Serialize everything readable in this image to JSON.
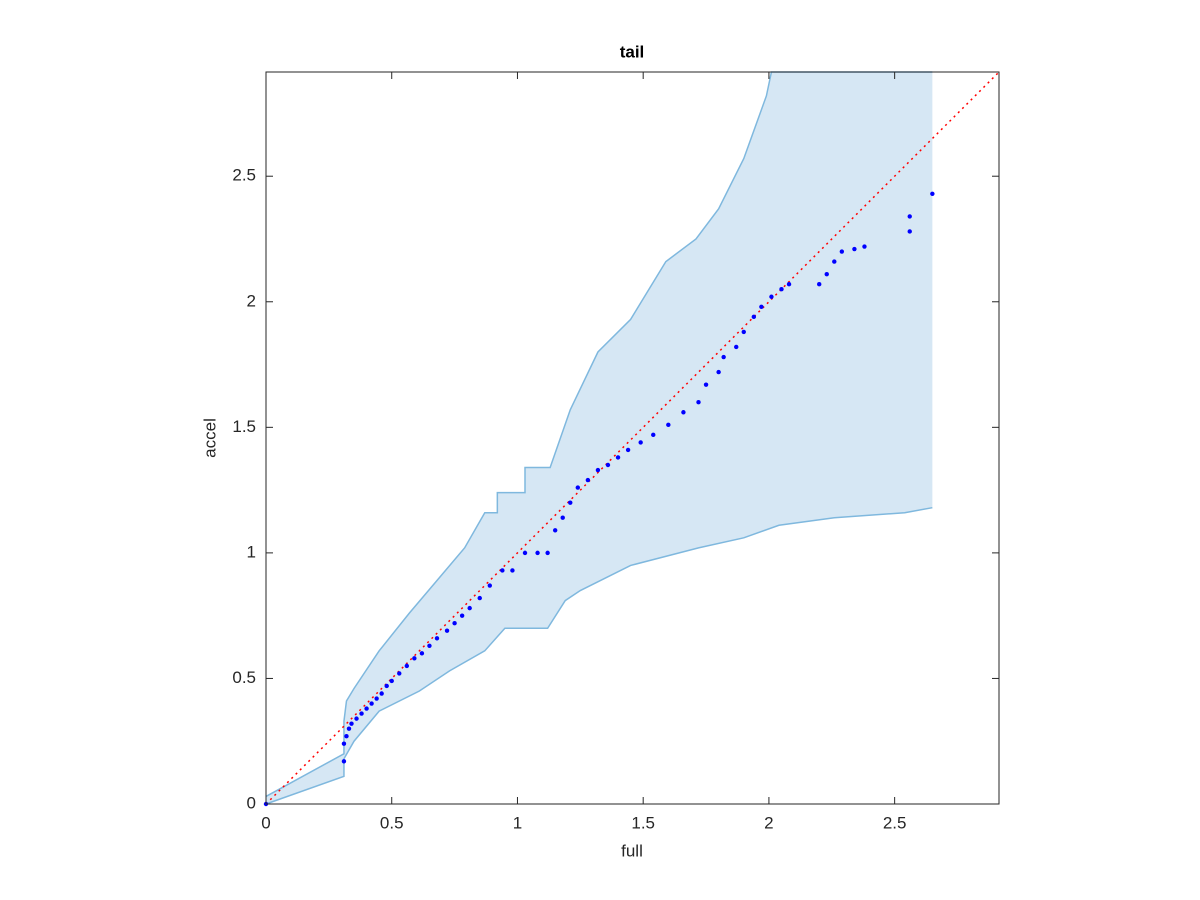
{
  "chart_data": {
    "type": "scatter",
    "title": "tail",
    "x_label": "full",
    "y_label": "accel",
    "xlim": [
      0,
      2.915
    ],
    "ylim": [
      0,
      2.915
    ],
    "xticks": [
      0,
      0.5,
      1,
      1.5,
      2,
      2.5
    ],
    "yticks": [
      0,
      0.5,
      1,
      1.5,
      2,
      2.5
    ],
    "band": {
      "color": "#d6e7f4",
      "edge_color": "#7fb8de",
      "upper": {
        "x": [
          0,
          0.31,
          0.31,
          0.32,
          0.35,
          0.45,
          0.57,
          0.68,
          0.79,
          0.87,
          0.92,
          0.92,
          1.03,
          1.03,
          1.13,
          1.21,
          1.32,
          1.45,
          1.59,
          1.71,
          1.8,
          1.9,
          1.99,
          2.01,
          2.65
        ],
        "y": [
          0.03,
          0.2,
          0.33,
          0.41,
          0.46,
          0.61,
          0.76,
          0.89,
          1.02,
          1.16,
          1.16,
          1.24,
          1.24,
          1.34,
          1.34,
          1.57,
          1.8,
          1.93,
          2.16,
          2.25,
          2.37,
          2.57,
          2.82,
          2.915,
          2.915
        ]
      },
      "lower": {
        "x": [
          0,
          0.31,
          0.31,
          0.35,
          0.45,
          0.61,
          0.73,
          0.87,
          0.95,
          1.12,
          1.19,
          1.25,
          1.45,
          1.72,
          1.9,
          2.04,
          2.26,
          2.54,
          2.65
        ],
        "y": [
          0,
          0.11,
          0.18,
          0.25,
          0.37,
          0.45,
          0.53,
          0.61,
          0.7,
          0.7,
          0.81,
          0.85,
          0.95,
          1.02,
          1.06,
          1.11,
          1.14,
          1.16,
          1.18
        ]
      }
    },
    "reference": {
      "x": [
        0,
        2.915
      ],
      "y": [
        0,
        2.915
      ],
      "color": "#ff0000"
    },
    "points": {
      "color": "#0000ff",
      "x": [
        0,
        0.31,
        0.31,
        0.32,
        0.33,
        0.34,
        0.36,
        0.38,
        0.4,
        0.42,
        0.44,
        0.46,
        0.48,
        0.5,
        0.53,
        0.56,
        0.59,
        0.62,
        0.65,
        0.68,
        0.72,
        0.75,
        0.78,
        0.81,
        0.85,
        0.89,
        0.94,
        0.98,
        1.03,
        1.08,
        1.12,
        1.15,
        1.18,
        1.21,
        1.24,
        1.28,
        1.32,
        1.36,
        1.4,
        1.44,
        1.49,
        1.54,
        1.6,
        1.66,
        1.72,
        1.75,
        1.8,
        1.82,
        1.87,
        1.9,
        1.94,
        1.97,
        2.01,
        2.05,
        2.08,
        2.2,
        2.23,
        2.26,
        2.29,
        2.34,
        2.38,
        2.56,
        2.56,
        2.65
      ],
      "y": [
        0,
        0.17,
        0.24,
        0.27,
        0.3,
        0.32,
        0.34,
        0.36,
        0.38,
        0.4,
        0.42,
        0.44,
        0.47,
        0.49,
        0.52,
        0.55,
        0.58,
        0.6,
        0.63,
        0.66,
        0.69,
        0.72,
        0.75,
        0.78,
        0.82,
        0.87,
        0.93,
        0.93,
        1.0,
        1.0,
        1.0,
        1.09,
        1.14,
        1.2,
        1.26,
        1.29,
        1.33,
        1.35,
        1.38,
        1.41,
        1.44,
        1.47,
        1.51,
        1.56,
        1.6,
        1.67,
        1.72,
        1.78,
        1.82,
        1.88,
        1.94,
        1.98,
        2.02,
        2.05,
        2.07,
        2.07,
        2.11,
        2.16,
        2.2,
        2.21,
        2.22,
        2.28,
        2.34,
        2.43
      ]
    }
  }
}
